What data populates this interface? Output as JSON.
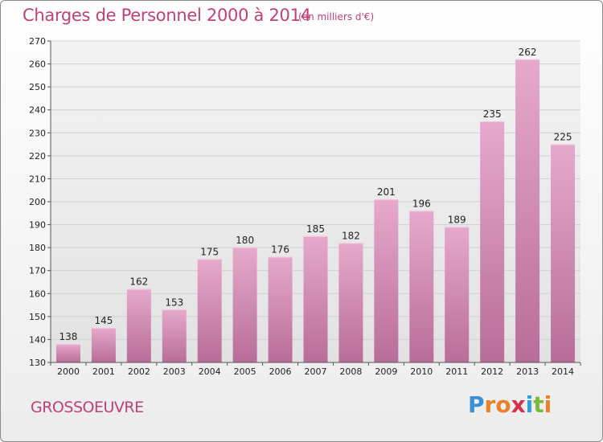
{
  "header": {
    "title": "Charges de Personnel 2000 à 2014",
    "subtitle": "(en milliers d'€)"
  },
  "footer": {
    "commune": "GROSSOEUVRE",
    "logo_text": "Proxiti",
    "logo_colors": [
      "#3a8fd8",
      "#e8812a",
      "#e8812a",
      "#d8304a",
      "#2e9fd8",
      "#7cb83a",
      "#e8812a"
    ]
  },
  "colors": {
    "bar_top": "#e6a9cb",
    "bar_bottom": "#b86d98",
    "grid": "#cfcfcf",
    "text_accent": "#c0407a"
  },
  "chart_data": {
    "type": "bar",
    "title": "Charges de Personnel 2000 à 2014",
    "subtitle": "(en milliers d'€)",
    "xlabel": "",
    "ylabel": "",
    "categories": [
      "2000",
      "2001",
      "2002",
      "2003",
      "2004",
      "2005",
      "2006",
      "2007",
      "2008",
      "2009",
      "2010",
      "2011",
      "2012",
      "2013",
      "2014"
    ],
    "values": [
      138,
      145,
      162,
      153,
      175,
      180,
      176,
      185,
      182,
      201,
      196,
      189,
      235,
      262,
      225
    ],
    "data_labels": [
      "138",
      "145",
      "162",
      "153",
      "175",
      "180",
      "176",
      "185",
      "182",
      "201",
      "196",
      "189",
      "235",
      "262",
      "225"
    ],
    "ylim": [
      130,
      270
    ],
    "yticks": [
      130,
      140,
      150,
      160,
      170,
      180,
      190,
      200,
      210,
      220,
      230,
      240,
      250,
      260,
      270
    ],
    "grid": true,
    "legend": "none"
  }
}
